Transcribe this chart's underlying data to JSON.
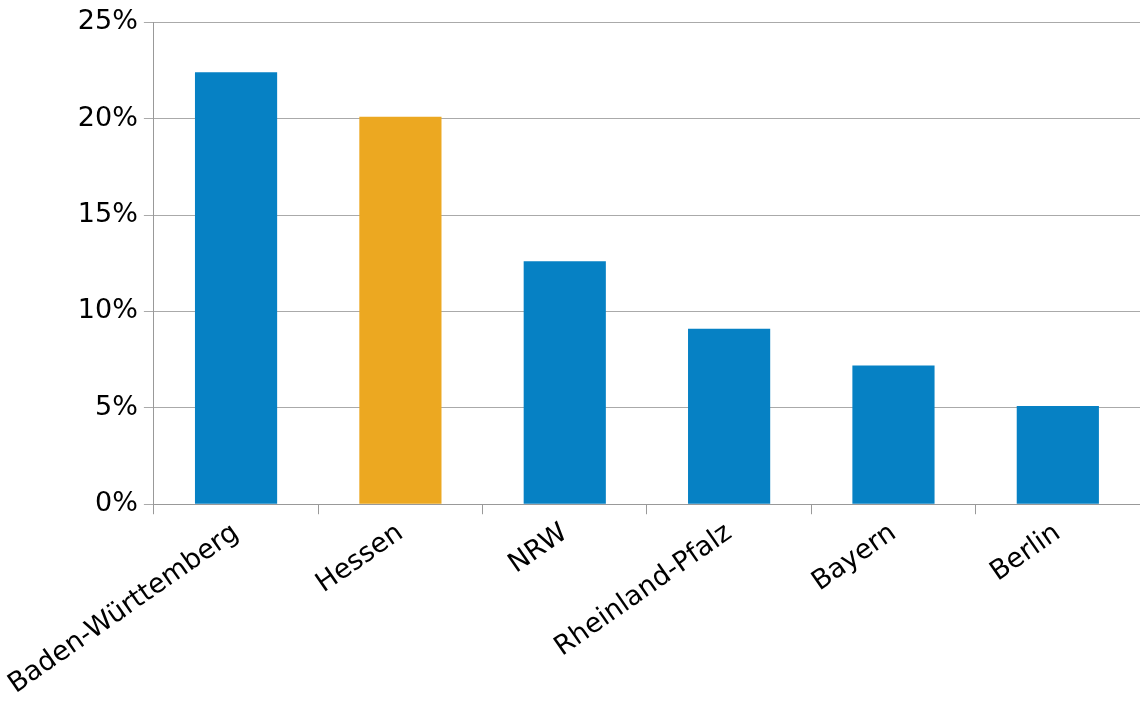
{
  "chart_data": {
    "type": "bar",
    "categories": [
      "Baden-Württemberg",
      "Hessen",
      "NRW",
      "Rheinland-Pfalz",
      "Bayern",
      "Berlin"
    ],
    "values": [
      22.4,
      20.1,
      12.6,
      9.1,
      7.2,
      5.1
    ],
    "colors": [
      "#0681c4",
      "#eca821",
      "#0681c4",
      "#0681c4",
      "#0681c4",
      "#0681c4"
    ],
    "ylim": [
      0,
      25
    ],
    "yticks": [
      {
        "value": 0,
        "label": "0%"
      },
      {
        "value": 5,
        "label": "5%"
      },
      {
        "value": 10,
        "label": "10%"
      },
      {
        "value": 15,
        "label": "15%"
      },
      {
        "value": 20,
        "label": "20%"
      },
      {
        "value": 25,
        "label": "25%"
      }
    ],
    "grid": "y",
    "legend": false
  }
}
